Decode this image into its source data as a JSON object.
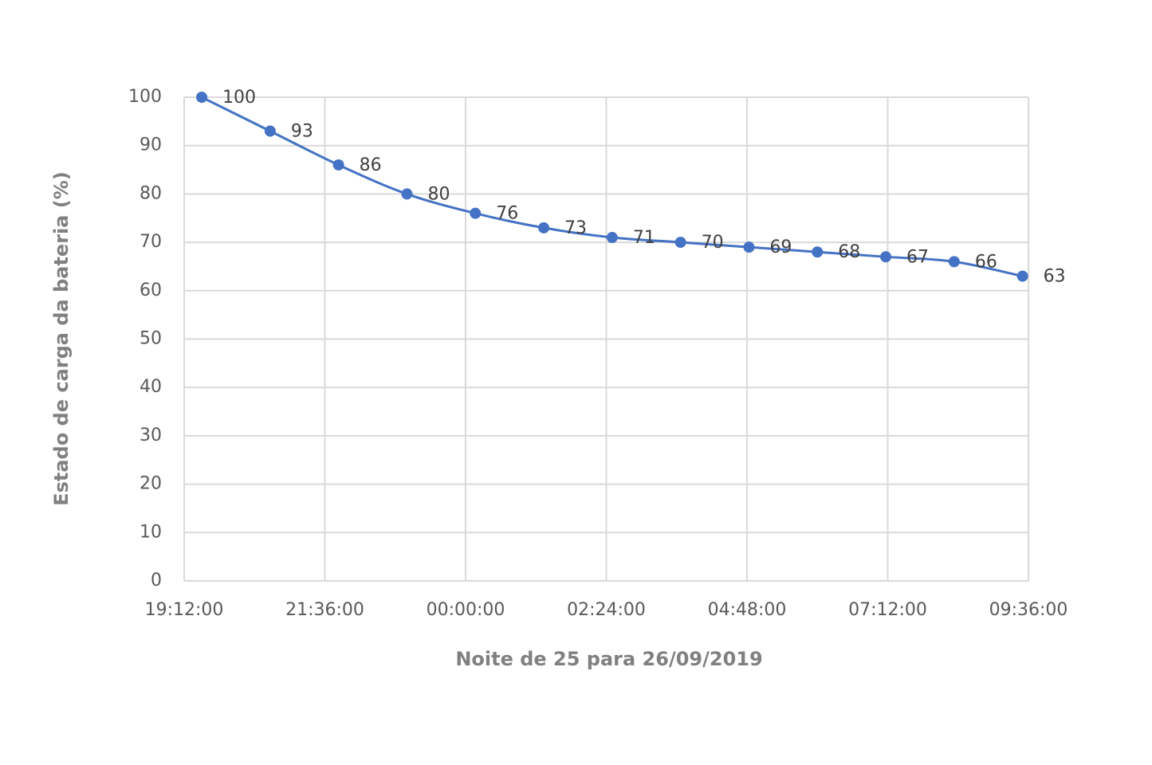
{
  "chart_data": {
    "type": "line",
    "x_label": "Noite de 25 para 26/09/2019",
    "y_label": "Estado de carga da bateria (%)",
    "x": [
      1170,
      1240,
      1310,
      1380,
      1450,
      1520,
      1590,
      1660,
      1730,
      1800,
      1870,
      1940,
      2010
    ],
    "series": [
      {
        "name": "Estado de carga",
        "color": "#4472c4",
        "values": [
          100,
          93,
          86,
          80,
          76,
          73,
          71,
          70,
          69,
          68,
          67,
          66,
          63
        ]
      }
    ],
    "xlim": [
      1152,
      2016
    ],
    "xticks": [
      {
        "value": 1152,
        "label": "19:12:00"
      },
      {
        "value": 1296,
        "label": "21:36:00"
      },
      {
        "value": 1440,
        "label": "00:00:00"
      },
      {
        "value": 1584,
        "label": "02:24:00"
      },
      {
        "value": 1728,
        "label": "04:48:00"
      },
      {
        "value": 1872,
        "label": "07:12:00"
      },
      {
        "value": 2016,
        "label": "09:36:00"
      }
    ],
    "ylim": [
      0,
      100
    ],
    "yticks": [
      0,
      10,
      20,
      30,
      40,
      50,
      60,
      70,
      80,
      90,
      100
    ],
    "grid": true,
    "smooth": true
  }
}
